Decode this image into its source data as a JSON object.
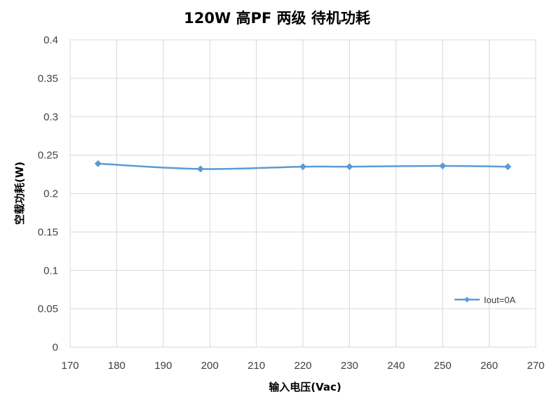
{
  "chart_data": {
    "type": "line",
    "title": "120W 高PF 两级 待机功耗",
    "xlabel": "输入电压(Vac)",
    "ylabel": "空载功耗(W)",
    "xlim": [
      170,
      270
    ],
    "ylim": [
      0,
      0.4
    ],
    "x_ticks": [
      "170",
      "180",
      "190",
      "200",
      "210",
      "220",
      "230",
      "240",
      "250",
      "260",
      "270"
    ],
    "y_ticks": [
      "0",
      "0.05",
      "0.1",
      "0.15",
      "0.2",
      "0.25",
      "0.3",
      "0.35",
      "0.4"
    ],
    "x_tick_values": [
      170,
      180,
      190,
      200,
      210,
      220,
      230,
      240,
      250,
      260,
      270
    ],
    "y_tick_values": [
      0,
      0.05,
      0.1,
      0.15,
      0.2,
      0.25,
      0.3,
      0.35,
      0.4
    ],
    "grid": true,
    "legend_position": "right",
    "series": [
      {
        "name": "Iout=0A",
        "color": "#5b9bd5",
        "marker": "diamond",
        "x": [
          176,
          198,
          220,
          230,
          250,
          264
        ],
        "y": [
          0.239,
          0.232,
          0.235,
          0.235,
          0.236,
          0.235
        ]
      }
    ]
  }
}
